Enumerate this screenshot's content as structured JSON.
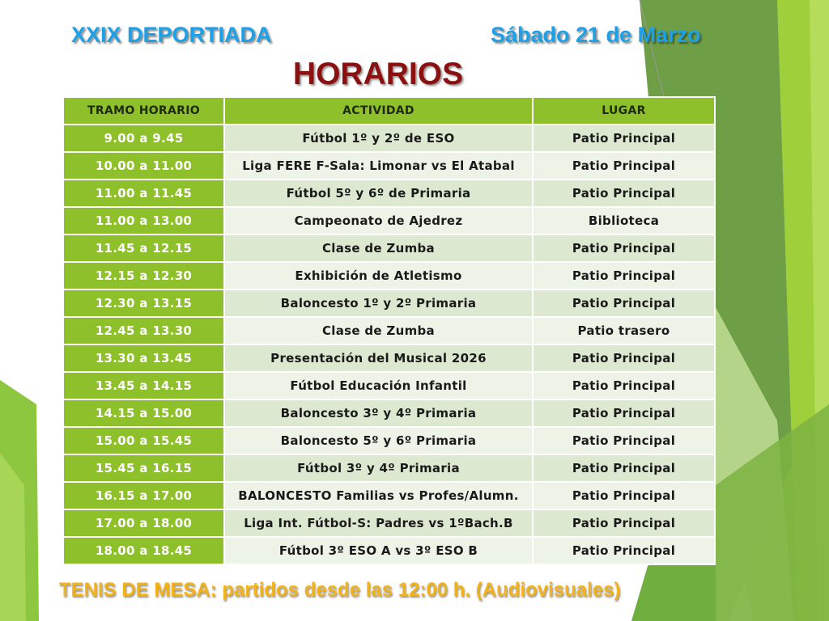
{
  "header": {
    "event": "XXIX DEPORTIADA",
    "date": "Sábado 21 de Marzo",
    "title": "HORARIOS"
  },
  "colors": {
    "accent_green": "#8dc02a",
    "title_blue": "#1ea0e6",
    "title_red": "#8b1010",
    "footer_orange": "#f2b21b"
  },
  "table": {
    "columns": [
      "TRAMO HORARIO",
      "ACTIVIDAD",
      "LUGAR"
    ],
    "rows": [
      [
        "9.00 a 9.45",
        "Fútbol 1º y 2º de ESO",
        "Patio Principal"
      ],
      [
        "10.00 a 11.00",
        "Liga FERE F-Sala: Limonar vs El Atabal",
        "Patio Principal"
      ],
      [
        "11.00 a 11.45",
        "Fútbol 5º y 6º de Primaria",
        "Patio Principal"
      ],
      [
        "11.00 a 13.00",
        "Campeonato de Ajedrez",
        "Biblioteca"
      ],
      [
        "11.45 a 12.15",
        "Clase de Zumba",
        "Patio Principal"
      ],
      [
        "12.15 a 12.30",
        "Exhibición de Atletismo",
        "Patio Principal"
      ],
      [
        "12.30 a 13.15",
        "Baloncesto 1º y 2º Primaria",
        "Patio Principal"
      ],
      [
        "12.45 a 13.30",
        "Clase de Zumba",
        "Patio trasero"
      ],
      [
        "13.30 a 13.45",
        "Presentación del Musical 2026",
        "Patio Principal"
      ],
      [
        "13.45 a 14.15",
        "Fútbol Educación Infantil",
        "Patio Principal"
      ],
      [
        "14.15 a 15.00",
        "Baloncesto 3º y 4º Primaria",
        "Patio Principal"
      ],
      [
        "15.00 a 15.45",
        "Baloncesto 5º y 6º Primaria",
        "Patio Principal"
      ],
      [
        "15.45 a 16.15",
        "Fútbol 3º y 4º Primaria",
        "Patio Principal"
      ],
      [
        "16.15 a 17.00",
        "BALONCESTO Familias vs Profes/Alumn.",
        "Patio Principal"
      ],
      [
        "17.00 a 18.00",
        "Liga Int. Fútbol-S: Padres vs 1ºBach.B",
        "Patio Principal"
      ],
      [
        "18.00 a 18.45",
        "Fútbol 3º ESO A vs 3º ESO B",
        "Patio Principal"
      ]
    ]
  },
  "footer": "TENIS DE MESA: partidos desde las 12:00 h. (Audiovisuales)"
}
